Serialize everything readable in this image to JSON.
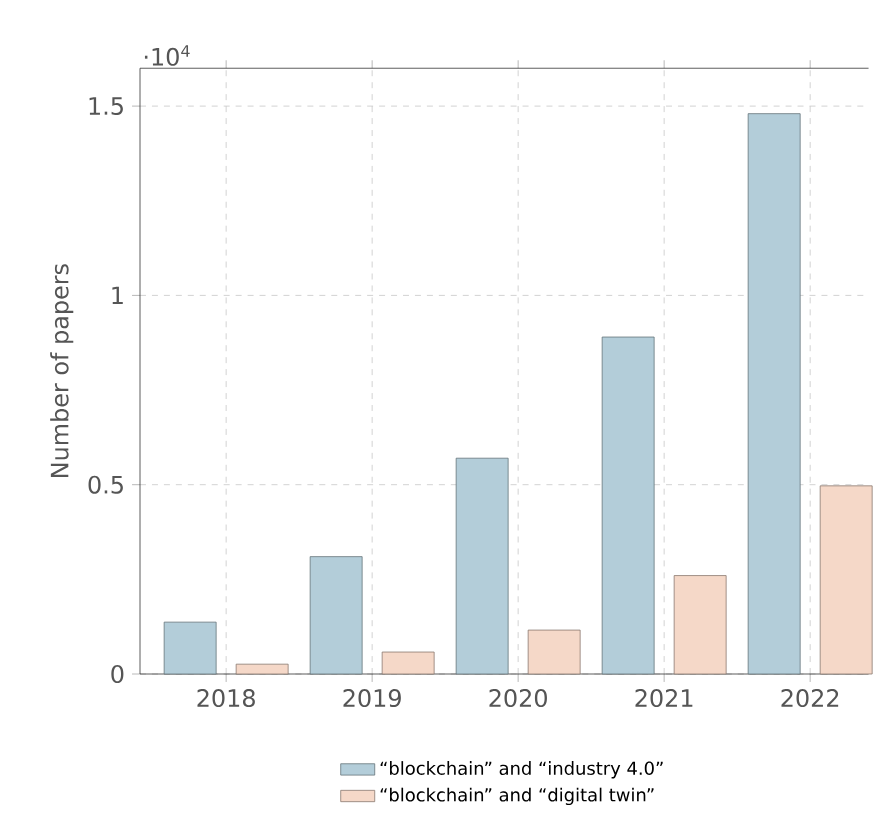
{
  "chart_data": {
    "type": "bar",
    "ylabel": "Number of papers",
    "categories": [
      "2018",
      "2019",
      "2020",
      "2021",
      "2022"
    ],
    "series": [
      {
        "name": "“blockchain” and “industry 4.0”",
        "color": "#b3cdd9",
        "values": [
          0.137,
          0.31,
          0.57,
          0.89,
          1.48
        ]
      },
      {
        "name": "“blockchain” and “digital twin”",
        "color": "#f5d8c8",
        "values": [
          0.026,
          0.058,
          0.116,
          0.26,
          0.497
        ]
      }
    ],
    "ylim": [
      0,
      1.6
    ],
    "yticks": [
      0,
      0.5,
      1,
      1.5
    ],
    "annotations": [
      "·10$^{4}$"
    ],
    "grid": true,
    "legend": "bottom"
  }
}
